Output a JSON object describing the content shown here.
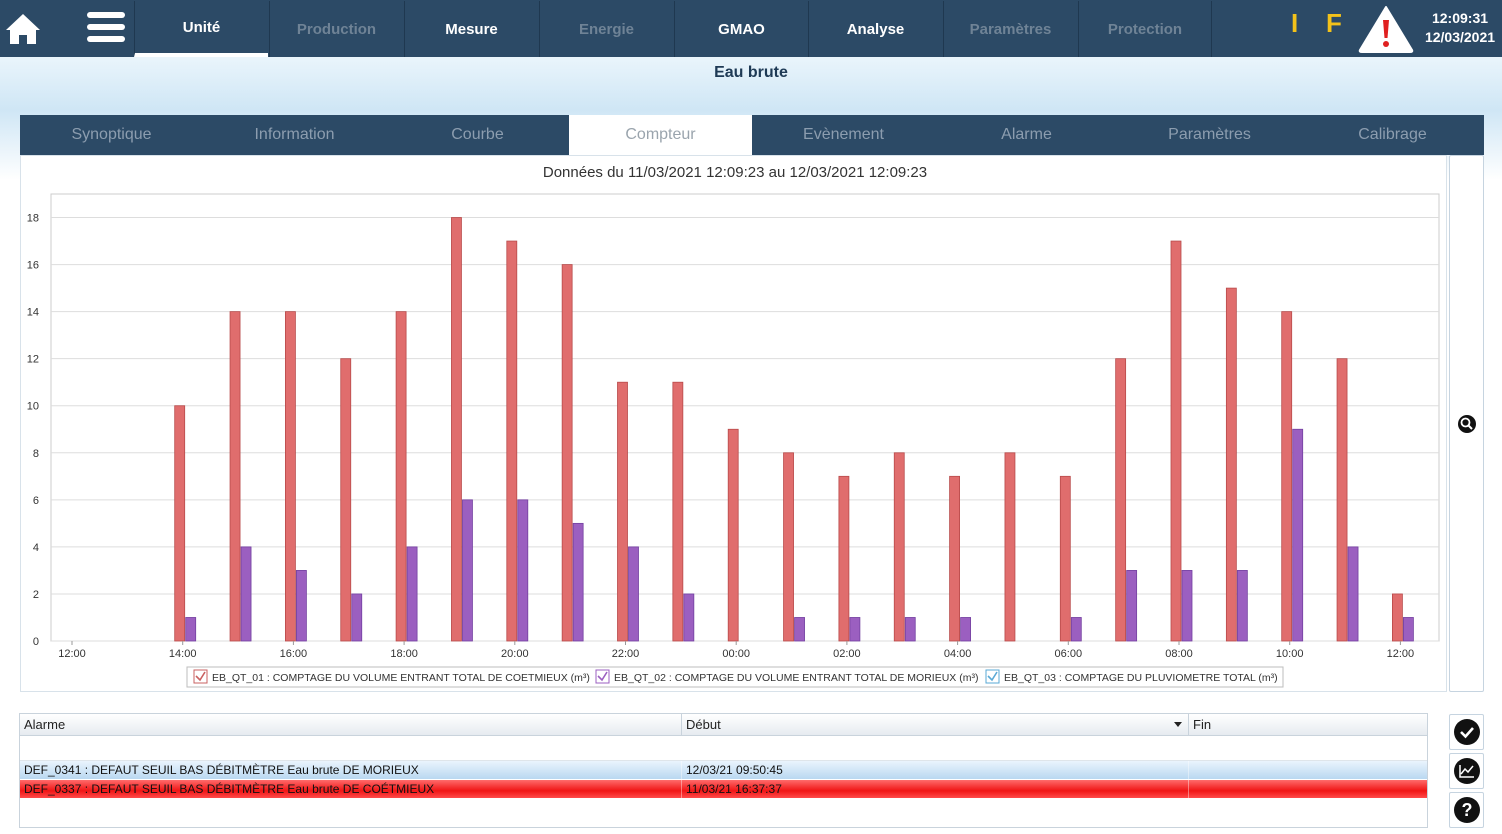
{
  "nav": {
    "tabs": [
      {
        "label": "Unité",
        "state": "active"
      },
      {
        "label": "Production",
        "state": "disabled"
      },
      {
        "label": "Mesure",
        "state": "enabled"
      },
      {
        "label": "Energie",
        "state": "disabled"
      },
      {
        "label": "GMAO",
        "state": "enabled"
      },
      {
        "label": "Analyse",
        "state": "enabled"
      },
      {
        "label": "Paramètres",
        "state": "disabled"
      },
      {
        "label": "Protection",
        "state": "disabled"
      }
    ],
    "indicator_i": "I",
    "indicator_f": "F",
    "time": "12:09:31",
    "date": "12/03/2021",
    "icons": {
      "home": "home-icon",
      "menu": "hamburger-menu-icon",
      "alarm": "warning-triangle-icon"
    }
  },
  "unit_title": "Eau brute",
  "subtabs": [
    "Synoptique",
    "Information",
    "Courbe",
    "Compteur",
    "Evènement",
    "Alarme",
    "Paramètres",
    "Calibrage"
  ],
  "active_subtab": "Compteur",
  "chart_data": {
    "type": "bar",
    "title": "Données du 11/03/2021 12:09:23 au 12/03/2021 12:09:23",
    "x_tick_labels": [
      "12:00",
      "14:00",
      "16:00",
      "18:00",
      "20:00",
      "22:00",
      "00:00",
      "02:00",
      "04:00",
      "06:00",
      "08:00",
      "10:00",
      "12:00"
    ],
    "y_ticks": [
      0,
      2,
      4,
      6,
      8,
      10,
      12,
      14,
      16,
      18
    ],
    "ylim": [
      0,
      19
    ],
    "hours": [
      "14:00",
      "15:00",
      "16:00",
      "17:00",
      "18:00",
      "19:00",
      "20:00",
      "21:00",
      "22:00",
      "23:00",
      "00:00",
      "01:00",
      "02:00",
      "03:00",
      "04:00",
      "05:00",
      "06:00",
      "07:00",
      "08:00",
      "09:00",
      "10:00",
      "11:00",
      "12:00"
    ],
    "series": [
      {
        "name": "EB_QT_01 : COMPTAGE DU VOLUME ENTRANT TOTAL DE COETMIEUX (m³)",
        "color": "#e06d6d",
        "values": [
          10,
          14,
          14,
          12,
          14,
          18,
          17,
          16,
          11,
          11,
          9,
          8,
          7,
          8,
          7,
          8,
          7,
          12,
          17,
          15,
          14,
          12,
          2
        ]
      },
      {
        "name": "EB_QT_02 : COMPTAGE DU VOLUME ENTRANT TOTAL DE MORIEUX (m³)",
        "color": "#9b5fc0",
        "values": [
          1,
          4,
          3,
          2,
          4,
          6,
          6,
          5,
          4,
          2,
          0,
          1,
          1,
          1,
          1,
          0,
          1,
          3,
          3,
          3,
          9,
          4,
          1
        ]
      },
      {
        "name": "EB_QT_03 : COMPTAGE DU PLUVIOMETRE TOTAL (m³)",
        "color": "#5aa9d6",
        "values": []
      }
    ],
    "legend_placement": "bottom",
    "grid": true
  },
  "alarms": {
    "headers": {
      "alarme": "Alarme",
      "debut": "Début",
      "fin": "Fin"
    },
    "rows": [
      {
        "alarme": "DEF_0341 : DEFAUT SEUIL BAS DÉBITMÈTRE Eau brute DE MORIEUX",
        "debut": "12/03/21 09:50:45",
        "fin": "",
        "status": "acknowledged"
      },
      {
        "alarme": "DEF_0337 : DEFAUT SEUIL BAS DÉBITMÈTRE Eau brute DE COÉTMIEUX",
        "debut": "11/03/21 16:37:37",
        "fin": "",
        "status": "active"
      }
    ]
  }
}
